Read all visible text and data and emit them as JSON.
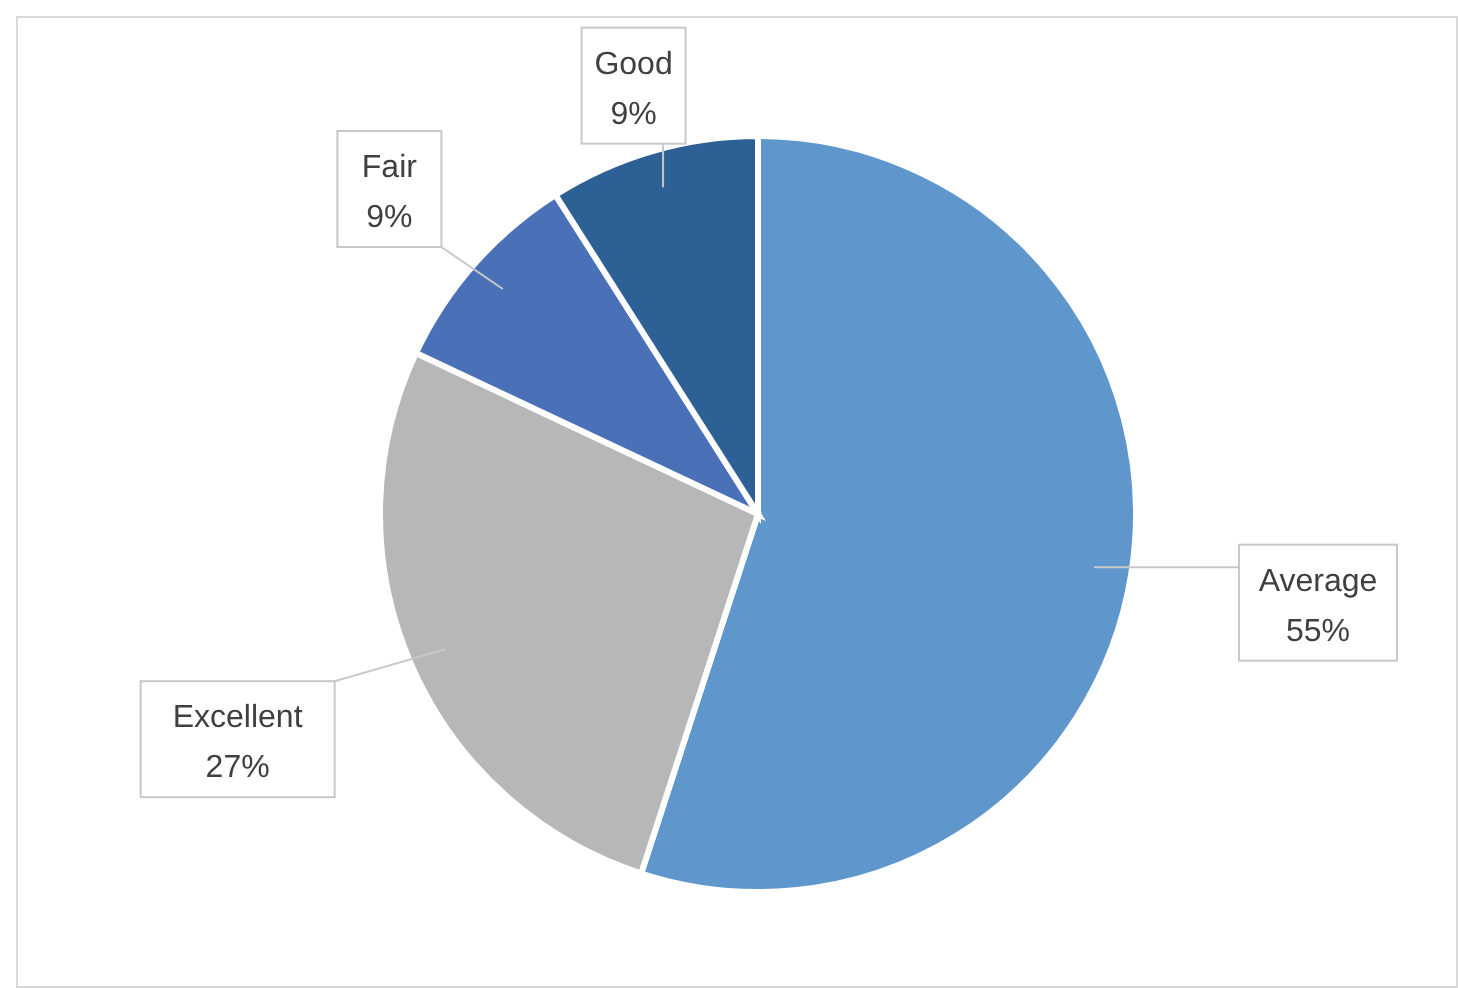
{
  "chart_data": {
    "type": "pie",
    "categories": [
      "Average",
      "Excellent",
      "Fair",
      "Good"
    ],
    "values": [
      55,
      27,
      9,
      9
    ],
    "colors": [
      "#5f97cc",
      "#b7b7b7",
      "#4a70b8",
      "#2d6196"
    ],
    "value_labels": [
      "55%",
      "27%",
      "9%",
      "9%"
    ]
  }
}
